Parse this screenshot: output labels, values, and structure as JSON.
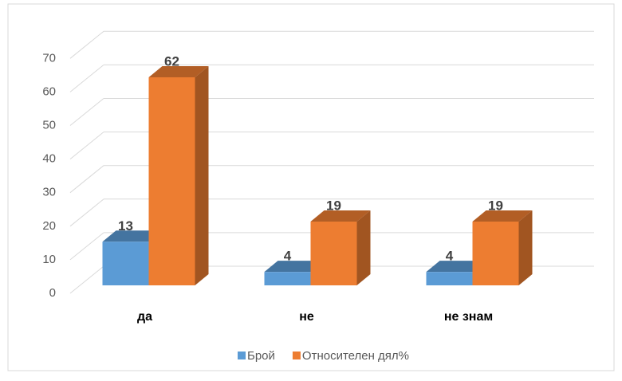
{
  "chart_data": {
    "type": "bar3d",
    "categories": [
      "да",
      "не",
      "не знам"
    ],
    "series": [
      {
        "name": "Брой",
        "color": "#5b9bd5",
        "values": [
          13,
          4,
          4
        ]
      },
      {
        "name": "Относителен дял%",
        "color": "#ed7d31",
        "values": [
          62,
          19,
          19
        ]
      }
    ],
    "ylim": [
      0,
      70
    ],
    "yticks": [
      0,
      10,
      20,
      30,
      40,
      50,
      60,
      70
    ],
    "grid": true,
    "legend": "bottom"
  }
}
